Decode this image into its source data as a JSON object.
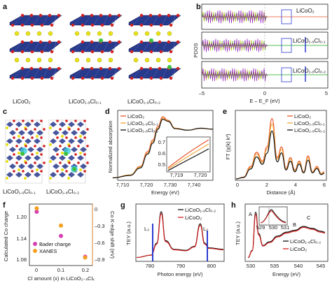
{
  "figure": {
    "panels": {
      "a": {
        "label": "a",
        "captions": [
          "LiCoO₂",
          "LiCoO₁.₉Cl₀.₁",
          "LiCoO₁.₈Cl₀.₂"
        ]
      },
      "b": {
        "label": "b",
        "ylabel": "PDOS",
        "xlabel": "E – E_F (eV)",
        "xticks": [
          "–5",
          "0",
          "5"
        ],
        "insets": [
          "LiCoO₂",
          "LiCoO₁.₉Cl₀.₁",
          "LiCoO₁.₈Cl₀.₂"
        ]
      },
      "c": {
        "label": "c",
        "captions": [
          "LiCoO₁.₉Cl₀.₁",
          "LiCoO₁.₈Cl₀.₂"
        ]
      },
      "d": {
        "label": "d",
        "ylabel": "Normalized absorption",
        "xlabel": "Energy (eV)",
        "xticks": [
          "7,710",
          "7,720",
          "7,730",
          "7,740"
        ],
        "legend": [
          "LiCoO₂",
          "LiCoO₁.₉Cl₀.₁",
          "LiCoO₁.₈Cl₀.₂"
        ],
        "inset_yticks": [
          "0.7",
          "0.6",
          "0.5"
        ],
        "inset_xticks": [
          "7,719",
          "7,720"
        ]
      },
      "e": {
        "label": "e",
        "ylabel": "FT (χ(k) k³)",
        "xlabel": "Distance (Å)",
        "xticks": [
          "0",
          "2",
          "4",
          "6"
        ],
        "legend": [
          "LiCoO₂",
          "LiCoO₁.₉Cl₀.₁",
          "LiCoO₁.₈Cl₀.₂"
        ]
      },
      "f": {
        "label": "f",
        "ylabel_left": "Calculated Co charge",
        "ylabel_right": "Co K-edge shift (eV)",
        "xlabel": "Cl amount (x) in LiCoO₂₋ₓClₓ",
        "yticks_left": [
          "1.20",
          "1.14",
          "1.08"
        ],
        "yticks_right": [
          "0",
          "–0.3",
          "–0.6",
          "–0.9"
        ],
        "xticks": [
          "0",
          "0.1",
          "0.2"
        ],
        "legend": [
          "Bader charge",
          "XANES"
        ]
      },
      "g": {
        "label": "g",
        "ylabel": "TEY (a.u.)",
        "xlabel": "Photon energy (eV)",
        "xticks": [
          "780",
          "790",
          "800"
        ],
        "legend": [
          "LiCoO₁.₈Cl₀.₂",
          "LiCoO₂"
        ],
        "peaks": [
          "L₃",
          "L₂"
        ]
      },
      "h": {
        "label": "h",
        "ylabel": "TEY (a.u.)",
        "xlabel": "Energy (eV)",
        "xticks": [
          "530",
          "535",
          "540",
          "545"
        ],
        "legend": [
          "LiCoO₁.₈Cl₀.₂",
          "LiCoO₂"
        ],
        "peaks": [
          "A",
          "B",
          "C"
        ],
        "inset_xticks": [
          "529",
          "530",
          "531"
        ]
      }
    },
    "colors": {
      "licoo2": "#e8532a",
      "cl01": "#f2a83a",
      "cl02": "#111111",
      "octa": "#283a8c",
      "li": "#e8e21a",
      "o": "#d42020",
      "cl": "#3cc040"
    }
  },
  "chart_data": [
    {
      "type": "line",
      "panel": "d",
      "ylabel": "Normalized absorption",
      "xlabel": "Energy (eV)",
      "x_range": [
        7705,
        7745
      ],
      "series": [
        {
          "name": "LiCoO₂",
          "x": [
            7705,
            7712,
            7716,
            7719,
            7721,
            7723,
            7725,
            7727,
            7730,
            7735,
            7740,
            7745
          ],
          "y": [
            0.02,
            0.08,
            0.25,
            0.55,
            0.78,
            1.05,
            1.25,
            1.18,
            1.02,
            0.98,
            1.02,
            1.0
          ]
        },
        {
          "name": "LiCoO₁.₉Cl₀.₁",
          "x": [
            7705,
            7712,
            7716,
            7719,
            7721,
            7723,
            7725,
            7727,
            7730,
            7735,
            7740,
            7745
          ],
          "y": [
            0.02,
            0.08,
            0.24,
            0.52,
            0.75,
            1.02,
            1.22,
            1.17,
            1.02,
            0.98,
            1.02,
            1.0
          ]
        },
        {
          "name": "LiCoO₁.₈Cl₀.₂",
          "x": [
            7705,
            7712,
            7716,
            7719,
            7721,
            7723,
            7725,
            7727,
            7730,
            7735,
            7740,
            7745
          ],
          "y": [
            0.02,
            0.07,
            0.22,
            0.5,
            0.72,
            1.0,
            1.2,
            1.16,
            1.01,
            0.98,
            1.02,
            1.0
          ]
        }
      ]
    },
    {
      "type": "line",
      "panel": "e",
      "ylabel": "FT (χ(k) k³)",
      "xlabel": "Distance (Å)",
      "x_range": [
        0,
        6
      ],
      "series": [
        {
          "name": "LiCoO₂",
          "x": [
            0,
            0.5,
            1.0,
            1.4,
            1.8,
            2.1,
            2.45,
            2.8,
            3.1,
            3.4,
            3.7,
            4.0,
            4.3,
            4.6,
            4.9,
            5.2,
            5.5,
            5.8,
            6.0
          ],
          "y": [
            0,
            0.5,
            3.5,
            7.5,
            5.0,
            9.0,
            17.0,
            6.0,
            9.0,
            3.0,
            6.0,
            2.5,
            5.0,
            2.0,
            6.5,
            2.0,
            3.5,
            1.5,
            2.0
          ]
        },
        {
          "name": "LiCoO₁.₉Cl₀.₁",
          "x": [
            0,
            0.5,
            1.0,
            1.4,
            1.8,
            2.1,
            2.45,
            2.8,
            3.1,
            3.4,
            3.7,
            4.0,
            4.3,
            4.6,
            4.9,
            5.2,
            5.5,
            5.8,
            6.0
          ],
          "y": [
            0,
            0.4,
            3.2,
            7.0,
            4.6,
            8.3,
            15.5,
            5.5,
            8.3,
            2.8,
            5.6,
            2.3,
            4.7,
            1.9,
            6.0,
            1.9,
            3.2,
            1.4,
            1.8
          ]
        },
        {
          "name": "LiCoO₁.₈Cl₀.₂",
          "x": [
            0,
            0.5,
            1.0,
            1.4,
            1.8,
            2.1,
            2.45,
            2.8,
            3.1,
            3.4,
            3.7,
            4.0,
            4.3,
            4.6,
            4.9,
            5.2,
            5.5,
            5.8,
            6.0
          ],
          "y": [
            0,
            0.4,
            2.8,
            6.2,
            4.1,
            7.2,
            13.5,
            4.8,
            7.3,
            2.5,
            5.0,
            2.0,
            4.2,
            1.7,
            5.3,
            1.7,
            2.9,
            1.2,
            1.6
          ]
        }
      ]
    },
    {
      "type": "scatter",
      "panel": "f",
      "xlabel": "Cl amount (x) in LiCoO₂₋ₓClₓ",
      "series": [
        {
          "name": "Bader charge",
          "axis": "left",
          "x": [
            0,
            0.1,
            0.2
          ],
          "y": [
            1.205,
            1.142,
            1.088
          ]
        },
        {
          "name": "XANES",
          "axis": "right",
          "x": [
            0,
            0.1,
            0.2
          ],
          "y": [
            -0.02,
            -0.3,
            -0.82
          ]
        }
      ]
    },
    {
      "type": "line",
      "panel": "g",
      "xlabel": "Photon energy (eV)",
      "ylabel": "TEY (a.u.)",
      "series": [
        {
          "name": "LiCoO₁.₈Cl₀.₂",
          "x": [
            775,
            780,
            782,
            783.5,
            785,
            788,
            792,
            795,
            797,
            798.5,
            800,
            805
          ],
          "y": [
            0.05,
            0.1,
            0.35,
            1.0,
            0.4,
            0.22,
            0.2,
            0.28,
            0.75,
            0.35,
            0.25,
            0.22
          ]
        },
        {
          "name": "LiCoO₂",
          "x": [
            775,
            780,
            782,
            783.5,
            785,
            788,
            792,
            795,
            797,
            798.5,
            800,
            805
          ],
          "y": [
            0.05,
            0.1,
            0.33,
            0.96,
            0.38,
            0.21,
            0.19,
            0.27,
            0.72,
            0.33,
            0.24,
            0.21
          ]
        }
      ]
    },
    {
      "type": "line",
      "panel": "h",
      "xlabel": "Energy (eV)",
      "ylabel": "TEY (a.u.)",
      "series": [
        {
          "name": "LiCoO₁.₈Cl₀.₂",
          "x": [
            528,
            529,
            529.8,
            530.5,
            531.5,
            533,
            535,
            537,
            539,
            541,
            543,
            545,
            546
          ],
          "y": [
            0.05,
            0.2,
            1.0,
            0.55,
            0.3,
            0.38,
            0.5,
            0.58,
            0.62,
            0.7,
            0.66,
            0.6,
            0.58
          ]
        },
        {
          "name": "LiCoO₂",
          "x": [
            528,
            529,
            529.8,
            530.5,
            531.5,
            533,
            535,
            537,
            539,
            541,
            543,
            545,
            546
          ],
          "y": [
            0.05,
            0.19,
            0.95,
            0.52,
            0.29,
            0.36,
            0.48,
            0.56,
            0.6,
            0.68,
            0.64,
            0.58,
            0.56
          ]
        }
      ]
    }
  ]
}
